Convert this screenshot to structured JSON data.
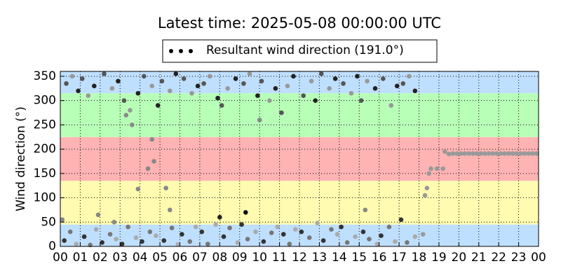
{
  "chart_data": {
    "type": "scatter",
    "title": "Latest time: 2025-05-08 00:00:00 UTC",
    "y_label": "Wind direction (°)",
    "xlim": [
      0,
      24
    ],
    "ylim": [
      0,
      360
    ],
    "xticks": [
      {
        "value": 0,
        "label": "00"
      },
      {
        "value": 1,
        "label": "01"
      },
      {
        "value": 2,
        "label": "02"
      },
      {
        "value": 3,
        "label": "03"
      },
      {
        "value": 4,
        "label": "04"
      },
      {
        "value": 5,
        "label": "05"
      },
      {
        "value": 6,
        "label": "06"
      },
      {
        "value": 7,
        "label": "07"
      },
      {
        "value": 8,
        "label": "08"
      },
      {
        "value": 9,
        "label": "09"
      },
      {
        "value": 10,
        "label": "10"
      },
      {
        "value": 11,
        "label": "11"
      },
      {
        "value": 12,
        "label": "12"
      },
      {
        "value": 13,
        "label": "13"
      },
      {
        "value": 14,
        "label": "14"
      },
      {
        "value": 15,
        "label": "15"
      },
      {
        "value": 16,
        "label": "16"
      },
      {
        "value": 17,
        "label": "17"
      },
      {
        "value": 18,
        "label": "18"
      },
      {
        "value": 19,
        "label": "19"
      },
      {
        "value": 20,
        "label": "20"
      },
      {
        "value": 21,
        "label": "21"
      },
      {
        "value": 22,
        "label": "22"
      },
      {
        "value": 23,
        "label": "23"
      },
      {
        "value": 24,
        "label": "00"
      }
    ],
    "yticks": [
      0,
      50,
      100,
      150,
      200,
      250,
      300,
      350
    ],
    "grid": true,
    "legend": "upper center",
    "bands": [
      {
        "from": 0,
        "to": 45,
        "color": "#bfdfff"
      },
      {
        "from": 45,
        "to": 135,
        "color": "#fffbb0"
      },
      {
        "from": 135,
        "to": 225,
        "color": "#ffb3b3"
      },
      {
        "from": 225,
        "to": 315,
        "color": "#b8ffb8"
      },
      {
        "from": 315,
        "to": 360,
        "color": "#bfdfff"
      }
    ],
    "series": [
      {
        "name": "Resultant wind direction (191.0°)",
        "color": "#000000",
        "x": [
          0.2,
          0.5,
          0.8,
          0.3,
          0.6,
          0.9,
          1.2,
          1.5,
          1.8,
          1.1,
          1.4,
          1.7,
          2.1,
          2.5,
          2.8,
          2.2,
          2.6,
          2.9,
          3.1,
          3.4,
          3.8,
          3.2,
          3.5,
          3.9,
          4.1,
          4.5,
          4.8,
          4.2,
          4.6,
          4.9,
          5.2,
          5.6,
          5.9,
          5.1,
          5.5,
          5.8,
          6.1,
          6.5,
          6.8,
          6.2,
          6.6,
          6.9,
          7.1,
          7.4,
          7.8,
          7.2,
          7.5,
          7.9,
          8.2,
          8.5,
          8.9,
          8.1,
          8.4,
          8.8,
          9.1,
          9.4,
          9.8,
          9.2,
          9.5,
          9.9,
          10.2,
          10.6,
          10.9,
          10.1,
          10.5,
          10.8,
          11.2,
          11.5,
          11.8,
          11.1,
          11.4,
          11.7,
          12.1,
          12.5,
          12.9,
          12.2,
          12.6,
          12.8,
          13.2,
          13.6,
          13.9,
          13.1,
          13.5,
          13.8,
          14.1,
          14.4,
          14.8,
          14.2,
          14.6,
          14.9,
          15.2,
          15.5,
          15.9,
          15.1,
          15.4,
          15.8,
          16.1,
          16.5,
          16.8,
          16.2,
          16.6,
          16.9,
          17.1,
          17.4,
          17.8,
          17.2,
          17.5,
          17.8,
          0.1,
          1.9,
          2.7,
          3.6,
          3.3,
          3.9,
          4.4,
          4.6,
          4.7,
          5.3,
          5.5,
          9.3,
          8.0,
          10.0,
          15.3,
          18.2,
          18.3,
          18.4,
          18.5,
          18.6,
          18.9,
          19.2,
          19.3,
          19.5,
          19.7,
          19.9,
          20.1,
          20.3,
          20.5,
          20.7,
          20.9,
          21.1,
          21.3,
          21.5,
          21.7,
          21.9,
          22.1,
          22.3,
          22.5,
          22.7,
          22.9,
          23.1,
          23.3,
          23.5,
          23.7,
          23.9
        ],
        "values": [
          12,
          30,
          5,
          335,
          350,
          320,
          20,
          3,
          35,
          345,
          310,
          330,
          8,
          25,
          15,
          355,
          325,
          340,
          5,
          40,
          18,
          300,
          280,
          315,
          10,
          30,
          22,
          350,
          330,
          290,
          12,
          38,
          4,
          340,
          320,
          355,
          25,
          10,
          40,
          345,
          315,
          330,
          30,
          5,
          45,
          335,
          350,
          305,
          20,
          38,
          8,
          290,
          325,
          345,
          45,
          15,
          30,
          335,
          355,
          310,
          10,
          28,
          40,
          340,
          300,
          325,
          25,
          5,
          35,
          275,
          330,
          350,
          30,
          18,
          48,
          310,
          340,
          300,
          12,
          35,
          25,
          355,
          325,
          345,
          40,
          8,
          20,
          335,
          315,
          350,
          30,
          15,
          5,
          300,
          340,
          325,
          22,
          40,
          10,
          345,
          290,
          330,
          55,
          8,
          20,
          335,
          350,
          320,
          55,
          65,
          50,
          250,
          270,
          118,
          160,
          220,
          175,
          120,
          75,
          70,
          60,
          260,
          75,
          25,
          105,
          120,
          150,
          160,
          160,
          160,
          195,
          190,
          191,
          191,
          191,
          191,
          191,
          191,
          191,
          191,
          191,
          191,
          191,
          191,
          191,
          191,
          191,
          191,
          191,
          191,
          191,
          191,
          191,
          191
        ],
        "point_colors": [
          "#333",
          "#777",
          "#aaa",
          "#555",
          "#999",
          "#222",
          "#333",
          "#777",
          "#aaa",
          "#555",
          "#999",
          "#222",
          "#333",
          "#777",
          "#aaa",
          "#555",
          "#999",
          "#222",
          "#333",
          "#777",
          "#aaa",
          "#555",
          "#999",
          "#222",
          "#333",
          "#777",
          "#aaa",
          "#555",
          "#999",
          "#222",
          "#333",
          "#777",
          "#aaa",
          "#555",
          "#999",
          "#222",
          "#333",
          "#777",
          "#aaa",
          "#555",
          "#999",
          "#222",
          "#333",
          "#777",
          "#aaa",
          "#555",
          "#999",
          "#222",
          "#333",
          "#777",
          "#aaa",
          "#555",
          "#999",
          "#222",
          "#333",
          "#777",
          "#aaa",
          "#555",
          "#999",
          "#222",
          "#333",
          "#777",
          "#aaa",
          "#555",
          "#999",
          "#222",
          "#333",
          "#777",
          "#aaa",
          "#555",
          "#999",
          "#222",
          "#333",
          "#777",
          "#aaa",
          "#555",
          "#999",
          "#222",
          "#333",
          "#777",
          "#aaa",
          "#555",
          "#999",
          "#222",
          "#333",
          "#777",
          "#aaa",
          "#555",
          "#999",
          "#222",
          "#333",
          "#777",
          "#aaa",
          "#555",
          "#999",
          "#222",
          "#333",
          "#777",
          "#aaa",
          "#555",
          "#999",
          "#222",
          "#333",
          "#777",
          "#aaa",
          "#555",
          "#999",
          "#222",
          "#888",
          "#888",
          "#888",
          "#888",
          "#888",
          "#888",
          "#888",
          "#888",
          "#888",
          "#888",
          "#888",
          "#111",
          "#222",
          "#888",
          "#888",
          "#999",
          "#999",
          "#999",
          "#999",
          "#999",
          "#999",
          "#999",
          "#999",
          "#999",
          "#999",
          "#999",
          "#999",
          "#999",
          "#999",
          "#999",
          "#999",
          "#999",
          "#999",
          "#999",
          "#999",
          "#999",
          "#999",
          "#999",
          "#999",
          "#999",
          "#999",
          "#999",
          "#999",
          "#999",
          "#999",
          "#999"
        ]
      }
    ]
  }
}
